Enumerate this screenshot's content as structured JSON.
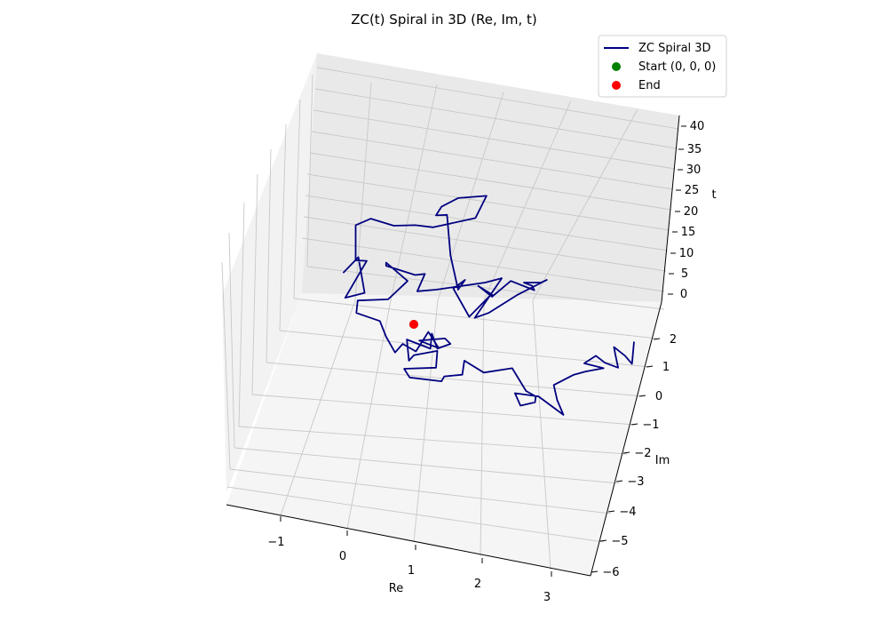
{
  "chart_data": {
    "type": "line",
    "projection": "3d",
    "title": "ZC(t) Spiral in 3D (Re, Im, t)",
    "xlabel": "Re",
    "ylabel": "Im",
    "zlabel": "t",
    "x_ticks": [
      "−1",
      "0",
      "1",
      "2",
      "3"
    ],
    "y_ticks": [
      "2",
      "1",
      "0",
      "−1",
      "−2",
      "−3",
      "−4",
      "−5",
      "−6"
    ],
    "z_ticks": [
      "40",
      "35",
      "30",
      "25",
      "20",
      "15",
      "10",
      "5",
      "0"
    ],
    "xlim": [
      -1.6,
      3.5
    ],
    "ylim": [
      -6.3,
      2.6
    ],
    "zlim": [
      -2,
      41
    ],
    "grid": true,
    "legend_position": "top-right",
    "legend": [
      {
        "label": "ZC Spiral 3D",
        "marker": "line",
        "color": "#000080"
      },
      {
        "label": "Start (0, 0, 0)",
        "marker": "dot",
        "color": "#008000"
      },
      {
        "label": "End",
        "marker": "dot",
        "color": "#ff0000"
      }
    ],
    "series": [
      {
        "name": "ZC Spiral 3D",
        "color": "#000080",
        "points": [
          [
            -1.02,
            0.95
          ],
          [
            -0.8,
            1.24
          ],
          [
            -0.71,
            0.58
          ],
          [
            -0.99,
            0.49
          ],
          [
            -0.68,
            1.17
          ],
          [
            -0.84,
            1.18
          ],
          [
            -0.84,
            1.83
          ],
          [
            -0.62,
            1.95
          ],
          [
            -0.29,
            1.82
          ],
          [
            0.02,
            1.83
          ],
          [
            0.28,
            1.79
          ],
          [
            0.89,
            1.96
          ],
          [
            1.05,
            2.37
          ],
          [
            0.64,
            2.33
          ],
          [
            0.4,
            2.17
          ],
          [
            0.32,
            2.01
          ],
          [
            0.48,
            2.02
          ],
          [
            0.53,
            1.27
          ],
          [
            0.64,
            0.64
          ],
          [
            0.74,
            0.82
          ],
          [
            0.57,
            0.66
          ],
          [
            0.8,
            0.14
          ],
          [
            1.1,
            0.53
          ],
          [
            1.14,
            0.54
          ],
          [
            0.93,
            0.71
          ],
          [
            1.13,
            0.51
          ],
          [
            1.4,
            0.8
          ],
          [
            1.74,
            0.63
          ],
          [
            1.71,
            0.71
          ],
          [
            1.59,
            0.77
          ],
          [
            1.84,
            0.77
          ],
          [
            1.92,
            0.82
          ],
          [
            1.49,
            0.54
          ],
          [
            1.08,
            0.21
          ],
          [
            0.88,
            0.12
          ],
          [
            1.27,
            0.85
          ],
          [
            1.03,
            0.77
          ],
          [
            0.32,
            0.64
          ],
          [
            0.05,
            0.61
          ],
          [
            0.16,
            0.93
          ],
          [
            0.02,
            0.91
          ],
          [
            -0.4,
            1.08
          ],
          [
            -0.4,
            1.14
          ],
          [
            -0.09,
            0.8
          ],
          [
            -0.37,
            0.46
          ],
          [
            -0.81,
            0.44
          ],
          [
            -0.83,
            0.21
          ],
          [
            -0.49,
            0.06
          ],
          [
            -0.4,
            -0.23
          ],
          [
            -0.27,
            -0.52
          ],
          [
            -0.16,
            -0.36
          ],
          [
            0.03,
            -0.5
          ],
          [
            0.21,
            -0.14
          ],
          [
            0.36,
            -0.44
          ],
          [
            0.08,
            -0.3
          ],
          [
            0.45,
            -0.26
          ],
          [
            0.53,
            -0.36
          ],
          [
            0.34,
            -0.45
          ],
          [
            0.26,
            -0.17
          ],
          [
            0.24,
            -0.45
          ],
          [
            -0.1,
            -0.28
          ],
          [
            -0.07,
            -0.67
          ],
          [
            0.0,
            -0.57
          ],
          [
            0.34,
            -0.49
          ],
          [
            0.32,
            -0.8
          ],
          [
            -0.14,
            -0.82
          ],
          [
            -0.06,
            -0.98
          ],
          [
            0.4,
            -1.05
          ],
          [
            0.44,
            -0.96
          ],
          [
            0.7,
            -0.93
          ],
          [
            0.73,
            -0.67
          ],
          [
            1.01,
            -0.89
          ],
          [
            1.42,
            -0.81
          ],
          [
            1.62,
            -1.23
          ],
          [
            1.76,
            -1.33
          ],
          [
            1.75,
            -1.44
          ],
          [
            1.54,
            -1.5
          ],
          [
            1.46,
            -1.27
          ],
          [
            1.8,
            -1.33
          ],
          [
            2.16,
            -1.67
          ],
          [
            2.07,
            -1.4
          ],
          [
            2.02,
            -1.12
          ],
          [
            2.31,
            -0.93
          ],
          [
            2.48,
            -0.87
          ],
          [
            2.74,
            -0.81
          ],
          [
            2.46,
            -0.72
          ],
          [
            2.63,
            -0.58
          ],
          [
            2.76,
            -0.71
          ],
          [
            2.95,
            -0.8
          ],
          [
            2.91,
            -0.56
          ],
          [
            2.89,
            -0.42
          ],
          [
            3.05,
            -0.58
          ],
          [
            3.15,
            -0.73
          ],
          [
            3.18,
            -0.32
          ]
        ]
      }
    ],
    "markers": [
      {
        "name": "Start (0, 0, 0)",
        "x": 0,
        "y": 0,
        "z": 0,
        "color": "#008000"
      },
      {
        "name": "End",
        "x": 0.02,
        "y": 0.91,
        "z": 40,
        "color": "#ff0000"
      }
    ]
  }
}
